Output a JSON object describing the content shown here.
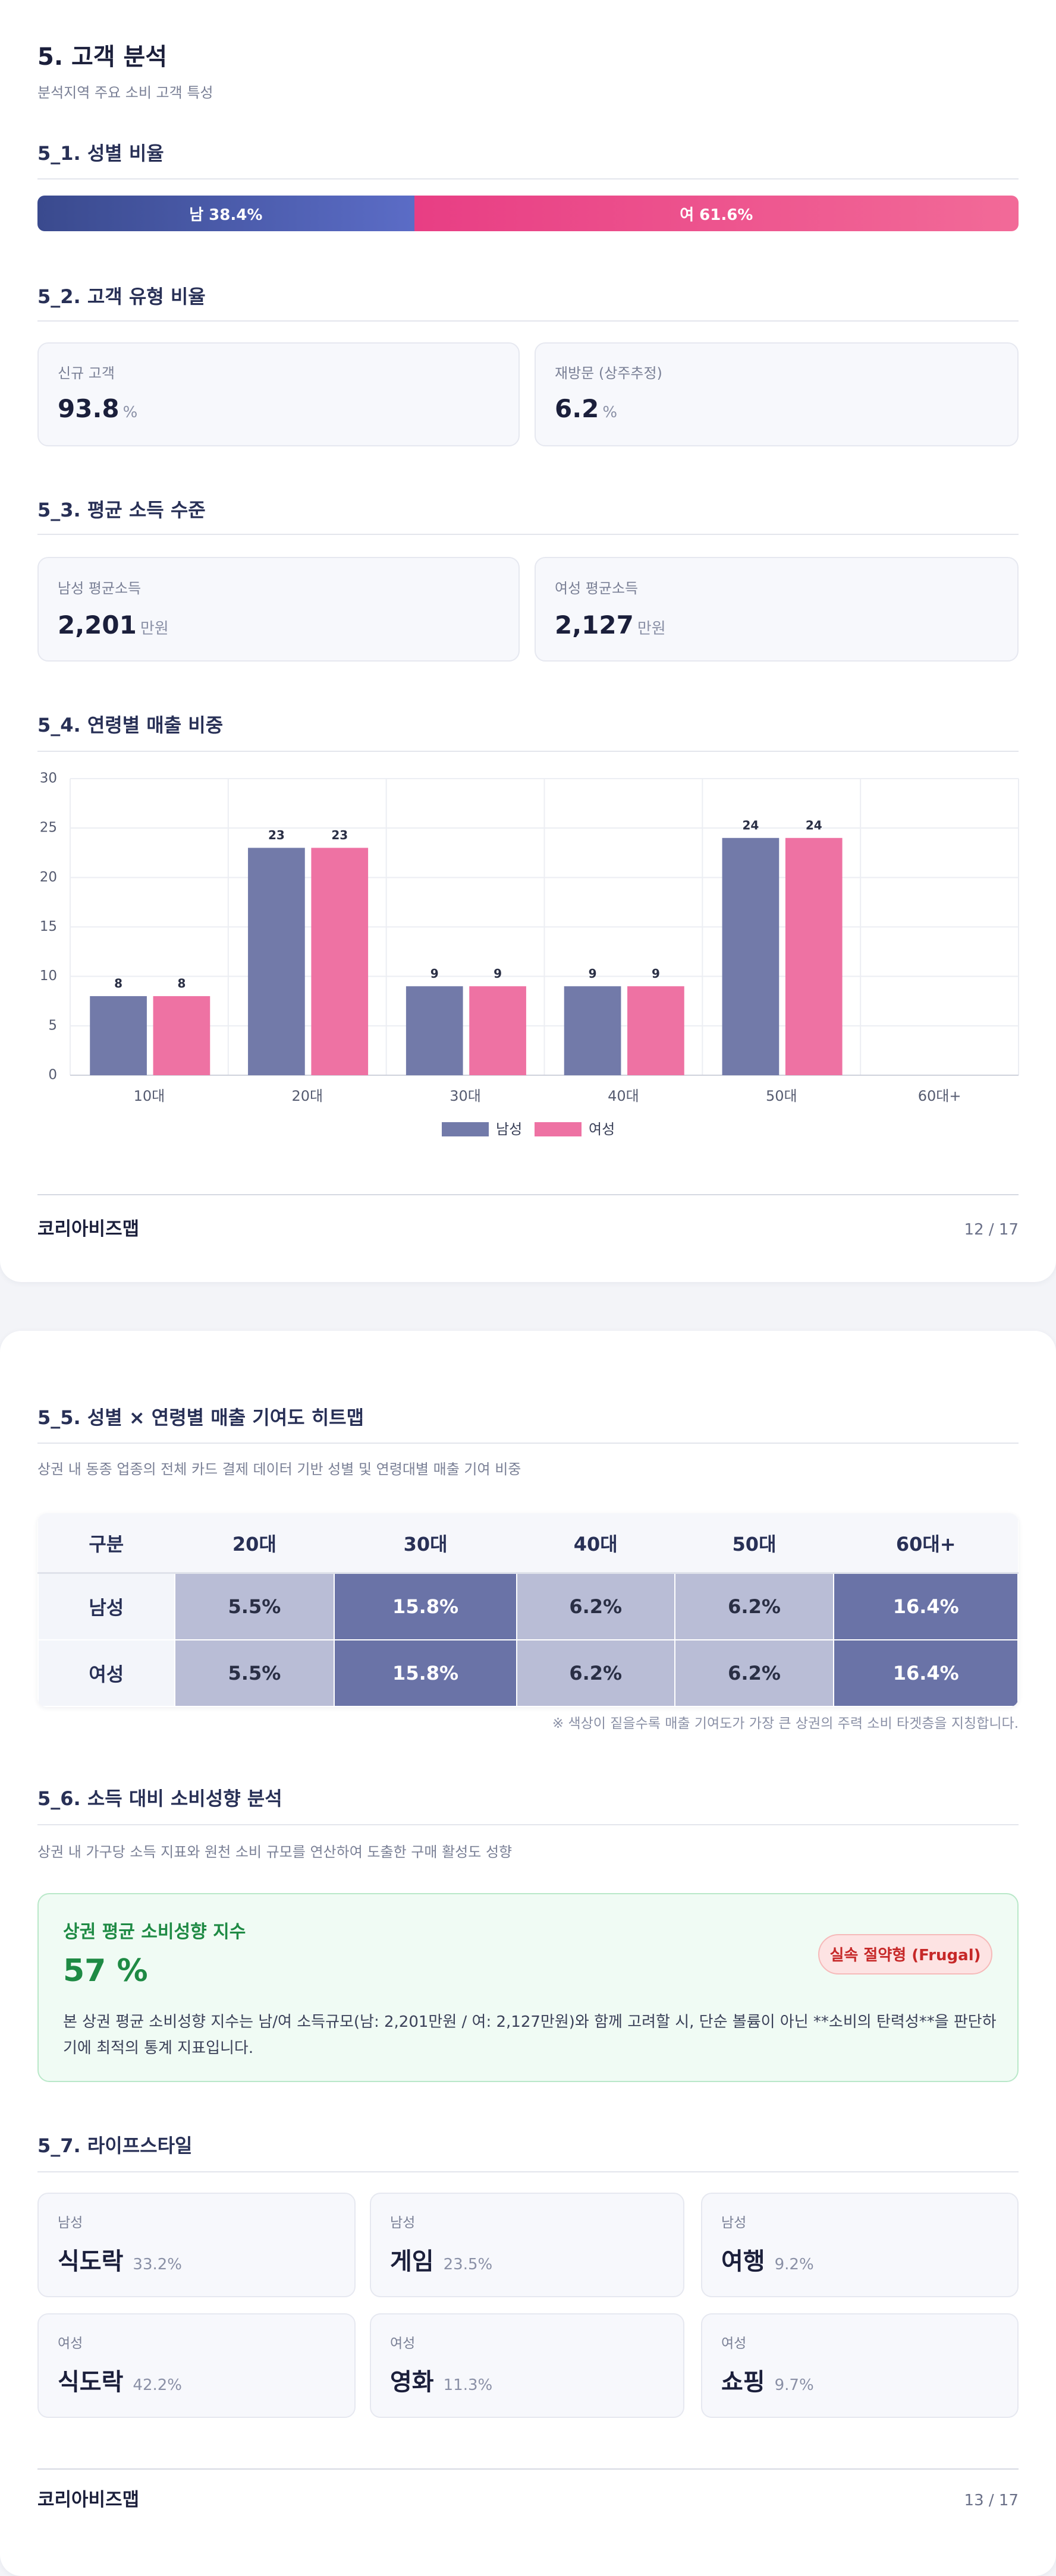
{
  "section": {
    "title": "5. 고객 분석",
    "subtitle": "분석지역 주요 소비 고객 특성"
  },
  "gender": {
    "title": "5_1. 성별 비율",
    "values": [
      38.4,
      61.6
    ],
    "value_labels": [
      "남 38.4%",
      "여 61.6%"
    ]
  },
  "customer_type": {
    "title": "5_2. 고객 유형 비율",
    "cards": [
      {
        "label": "신규 고객",
        "value": "93.8",
        "unit": "%"
      },
      {
        "label": "재방문 (상주추정)",
        "value": "6.2",
        "unit": "%"
      }
    ]
  },
  "income": {
    "title": "5_3. 평균 소득 수준",
    "cards": [
      {
        "label": "남성 평균소득",
        "value": "2,201",
        "unit": "만원"
      },
      {
        "label": "여성 평균소득",
        "value": "2,127",
        "unit": "만원"
      }
    ]
  },
  "chart_section": {
    "title": "5_4. 연령별 매출 비중"
  },
  "footer1": {
    "brand": "코리아비즈맵",
    "page": "12 / 17"
  },
  "heatmap": {
    "title": "5_5. 성별 × 연령별 매출 기여도 히트맵",
    "subtitle": "상권 내 동종 업종의 전체 카드 결제 데이터 기반 성별 및 연령대별 매출 기여 비중",
    "header": [
      "구분",
      "20대",
      "30대",
      "40대",
      "50대",
      "60대+"
    ],
    "rows": [
      [
        "남성",
        "5.5%",
        "15.8%",
        "6.2%",
        "6.2%",
        "16.4%"
      ],
      [
        "여성",
        "5.5%",
        "15.8%",
        "6.2%",
        "6.2%",
        "16.4%"
      ]
    ],
    "cell_colors": [
      [
        "#b9bdd6",
        "#6a73a7",
        "#b9bdd6",
        "#b9bdd6",
        "#6a73a7"
      ],
      [
        "#b9bdd6",
        "#6a73a7",
        "#b9bdd6",
        "#b9bdd6",
        "#6a73a7"
      ]
    ],
    "note": "※ 색상이 짙을수록 매출 기여도가 가장 큰 상권의 주력 소비 타겟층을 지칭합니다."
  },
  "propensity": {
    "title": "5_6. 소득 대비 소비성향 분석",
    "subtitle": "상권 내 가구당 소득 지표와 원천 소비 규모를 연산하여 도출한 구매 활성도 성향",
    "box_title": "상권 평균 소비성향 지수",
    "value": "57 %",
    "badge": "실속 절약형 (Frugal)",
    "body": "본 상권 평균 소비성향 지수는 남/여 소득규모(남: 2,201만원 / 여: 2,127만원)와 함께 고려할 시, 단순 볼륨이 아닌 **소비의 탄력성**을 판단하기에 최적의 통계 지표입니다."
  },
  "lifestyle": {
    "title": "5_7. 라이프스타일",
    "cards": [
      {
        "gender": "남성",
        "item": "식도락",
        "share": "33.2%"
      },
      {
        "gender": "남성",
        "item": "게임",
        "share": "23.5%"
      },
      {
        "gender": "남성",
        "item": "여행",
        "share": "9.2%"
      },
      {
        "gender": "여성",
        "item": "식도락",
        "share": "42.2%"
      },
      {
        "gender": "여성",
        "item": "영화",
        "share": "11.3%"
      },
      {
        "gender": "여성",
        "item": "쇼핑",
        "share": "9.7%"
      }
    ]
  },
  "footer2": {
    "brand": "코리아비즈맵",
    "page": "13 / 17"
  },
  "chart_data": {
    "type": "bar",
    "categories": [
      "10대",
      "20대",
      "30대",
      "40대",
      "50대",
      "60대+"
    ],
    "series": [
      {
        "name": "남성",
        "color": "#727aa9",
        "values": [
          8,
          23,
          9,
          9,
          24,
          null
        ]
      },
      {
        "name": "여성",
        "color": "#ee72a3",
        "values": [
          8,
          23,
          9,
          9,
          24,
          null
        ]
      }
    ],
    "ylim": [
      0,
      30
    ],
    "yticks": [
      0,
      5,
      10,
      15,
      20,
      25,
      30
    ],
    "grid": true,
    "legend": "bottom"
  }
}
